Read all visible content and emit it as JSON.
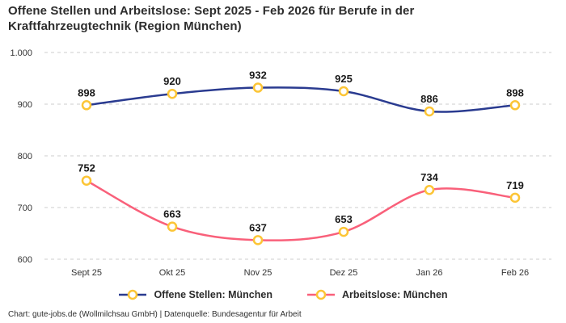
{
  "title": "Offene Stellen und Arbeitslose: Sept 2025 - Feb 2026 für Berufe in der Kraftfahrzeugtechnik (Region München)",
  "footer": "Chart: gute-jobs.de (Wollmilchsau GmbH) | Datenquelle: Bundesagentur für Arbeit",
  "colors": {
    "title_text": "#2d2d2d",
    "grid_line": "#cccccc",
    "axis_text": "#333333",
    "value_label_text": "#1a1a1a",
    "series_open_positions": "#2a3b90",
    "series_unemployed": "#f9607a",
    "marker_stroke": "#fcc536",
    "marker_fill": "#ffffff",
    "background": "#ffffff"
  },
  "chart_data": {
    "type": "line",
    "categories": [
      "Sept 25",
      "Okt 25",
      "Nov 25",
      "Dez 25",
      "Jan 26",
      "Feb 26"
    ],
    "series": [
      {
        "name": "Offene Stellen: München",
        "color": "#2a3b90",
        "values": [
          898,
          920,
          932,
          925,
          886,
          898
        ]
      },
      {
        "name": "Arbeitslose: München",
        "color": "#f9607a",
        "values": [
          752,
          663,
          637,
          653,
          734,
          719
        ]
      }
    ],
    "ylim": [
      600,
      1000
    ],
    "yticks": [
      600,
      700,
      800,
      900,
      1000
    ],
    "ytick_labels": [
      "600",
      "700",
      "800",
      "900",
      "1.000"
    ],
    "grid": "horizontal-dashed",
    "legend_position": "bottom",
    "value_labels_shown": true,
    "marker": {
      "shape": "ring",
      "fill": "#ffffff",
      "stroke": "#fcc536"
    }
  }
}
